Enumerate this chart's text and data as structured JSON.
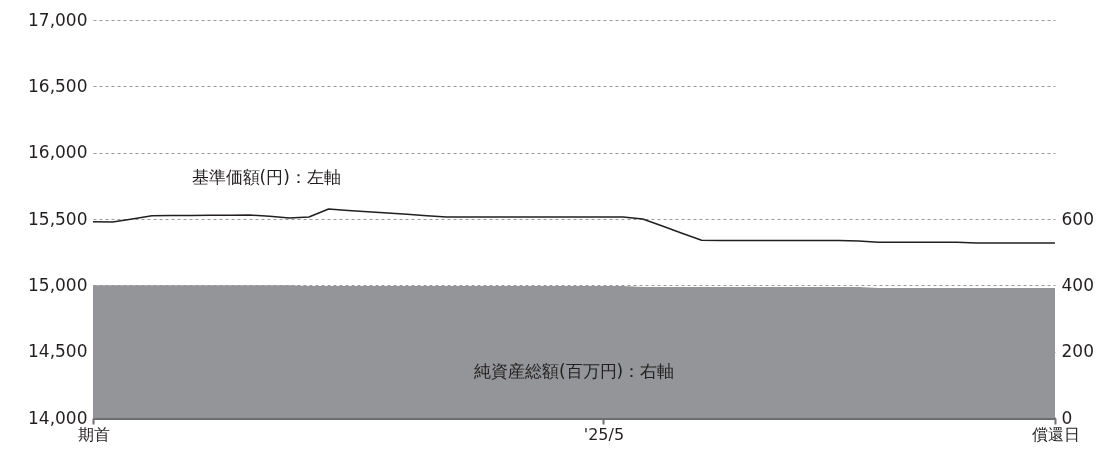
{
  "chart_data": {
    "type": "line",
    "categories": [
      "期首",
      null,
      null,
      null,
      null,
      null,
      null,
      null,
      null,
      null,
      null,
      null,
      null,
      null,
      null,
      null,
      null,
      null,
      null,
      null,
      null,
      null,
      null,
      null,
      null,
      null,
      "'25/5",
      null,
      null,
      null,
      null,
      null,
      null,
      null,
      null,
      null,
      null,
      null,
      null,
      null,
      null,
      null,
      null,
      null,
      null,
      null,
      null,
      null,
      null,
      "償還日"
    ],
    "series": [
      {
        "name": "純資産総額(百万円)：右軸",
        "type": "area",
        "axis": "y2",
        "color": "#939598",
        "values": [
          400,
          400,
          400,
          400,
          400,
          400,
          400,
          400,
          400,
          400,
          400,
          398,
          398,
          398,
          398,
          398,
          398,
          398,
          398,
          398,
          398,
          398,
          398,
          398,
          398,
          398,
          398,
          398,
          395,
          395,
          395,
          395,
          395,
          395,
          395,
          395,
          395,
          395,
          395,
          395,
          392,
          392,
          392,
          392,
          392,
          392,
          392,
          392,
          392,
          392
        ]
      },
      {
        "name": "基準価額(円)：左軸",
        "color": "#231f20",
        "values": [
          15480,
          15478,
          15500,
          15525,
          15526,
          15527,
          15528,
          15529,
          15530,
          15520,
          15508,
          15515,
          15575,
          15565,
          15555,
          15545,
          15535,
          15525,
          15515,
          15515,
          15515,
          15515,
          15515,
          15515,
          15515,
          15515,
          15515,
          15515,
          15500,
          15447,
          15393,
          15340,
          15338,
          15338,
          15338,
          15338,
          15338,
          15338,
          15338,
          15335,
          15325,
          15325,
          15325,
          15325,
          15325,
          15320,
          15320,
          15320,
          15320,
          15320
        ]
      }
    ],
    "ylim": [
      14000,
      17000
    ],
    "yticks": [
      {
        "value": 14000,
        "label": "14,000"
      },
      {
        "value": 14500,
        "label": "14,500"
      },
      {
        "value": 15000,
        "label": "15,000"
      },
      {
        "value": 15500,
        "label": "15,500"
      },
      {
        "value": 16000,
        "label": "16,000"
      },
      {
        "value": 16500,
        "label": "16,500"
      },
      {
        "value": 17000,
        "label": "17,000"
      }
    ],
    "y2lim": [
      0,
      1200
    ],
    "y2ticks": [
      0,
      200,
      400,
      600
    ],
    "grid": "y",
    "legend": false
  }
}
